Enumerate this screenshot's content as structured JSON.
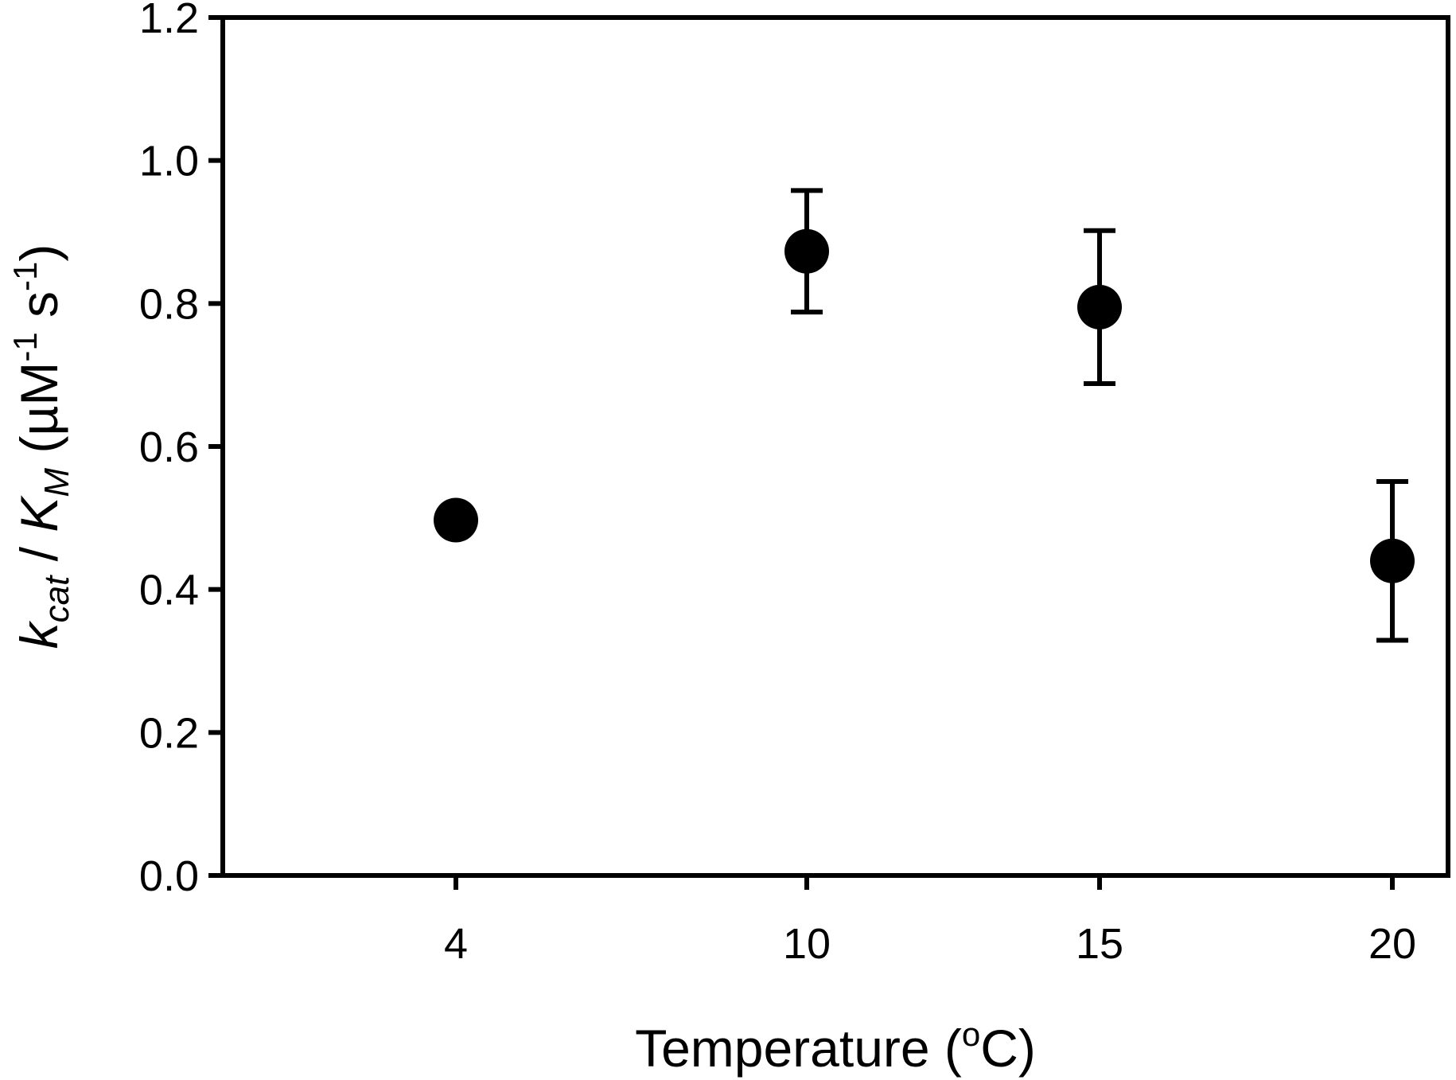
{
  "chart_data": {
    "type": "scatter",
    "title": "",
    "xlabel": {
      "text": "Temperature (",
      "sup": "o",
      "tail": "C)"
    },
    "ylabel": {
      "k": "k",
      "k_sub": "cat",
      "slash": " / ",
      "K": "K",
      "K_sub": "M",
      "unit_open": " (µM",
      "unit_sup1": "-1",
      "unit_mid": " s",
      "unit_sup2": "-1",
      "unit_close": ")"
    },
    "categories": [
      "4",
      "10",
      "15",
      "20"
    ],
    "yticks": [
      "0.0",
      "0.2",
      "0.4",
      "0.6",
      "0.8",
      "1.0",
      "1.2"
    ],
    "ylim": [
      0,
      1.2
    ],
    "grid": false,
    "series": [
      {
        "x": [
          "4",
          "10",
          "15",
          "20"
        ],
        "y": [
          0.497,
          0.873,
          0.795,
          0.44
        ],
        "error": [
          null,
          0.085,
          0.107,
          0.111
        ]
      }
    ],
    "marker_color": "#000000"
  }
}
